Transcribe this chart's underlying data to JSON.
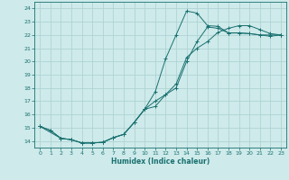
{
  "xlabel": "Humidex (Indice chaleur)",
  "bg_color": "#ceeaea",
  "grid_color": "#aad0d0",
  "line_color": "#1a7070",
  "xlim": [
    -0.5,
    23.5
  ],
  "ylim": [
    13.5,
    24.5
  ],
  "xticks": [
    0,
    1,
    2,
    3,
    4,
    5,
    6,
    7,
    8,
    9,
    10,
    11,
    12,
    13,
    14,
    15,
    16,
    17,
    18,
    19,
    20,
    21,
    22,
    23
  ],
  "yticks": [
    14,
    15,
    16,
    17,
    18,
    19,
    20,
    21,
    22,
    23,
    24
  ],
  "line1_x": [
    0,
    1,
    2,
    3,
    4,
    5,
    6,
    7,
    8,
    9,
    10,
    11,
    12,
    13,
    14,
    15,
    16,
    17,
    18,
    19,
    20,
    21,
    22,
    23
  ],
  "line1_y": [
    15.1,
    14.8,
    14.2,
    14.1,
    13.85,
    13.85,
    13.9,
    14.25,
    14.5,
    15.4,
    16.4,
    17.7,
    20.2,
    22.0,
    23.8,
    23.65,
    22.7,
    22.65,
    22.15,
    22.15,
    22.1,
    22.0,
    21.9,
    22.0
  ],
  "line2_x": [
    0,
    1,
    2,
    3,
    4,
    5,
    6,
    7,
    8,
    9,
    10,
    11,
    12,
    13,
    14,
    15,
    16,
    17,
    18,
    19,
    20,
    21,
    22,
    23
  ],
  "line2_y": [
    15.1,
    14.8,
    14.2,
    14.1,
    13.85,
    13.85,
    13.9,
    14.25,
    14.5,
    15.4,
    16.4,
    16.6,
    17.5,
    18.0,
    20.0,
    21.5,
    22.6,
    22.5,
    22.15,
    22.15,
    22.1,
    22.0,
    22.0,
    22.0
  ],
  "line3_x": [
    0,
    2,
    3,
    4,
    5,
    6,
    7,
    8,
    9,
    10,
    11,
    12,
    13,
    14,
    15,
    16,
    17,
    18,
    19,
    20,
    21,
    22,
    23
  ],
  "line3_y": [
    15.1,
    14.2,
    14.1,
    13.85,
    13.85,
    13.9,
    14.25,
    14.5,
    15.4,
    16.4,
    17.0,
    17.5,
    18.3,
    20.3,
    21.0,
    21.5,
    22.2,
    22.5,
    22.7,
    22.7,
    22.4,
    22.1,
    22.0
  ]
}
